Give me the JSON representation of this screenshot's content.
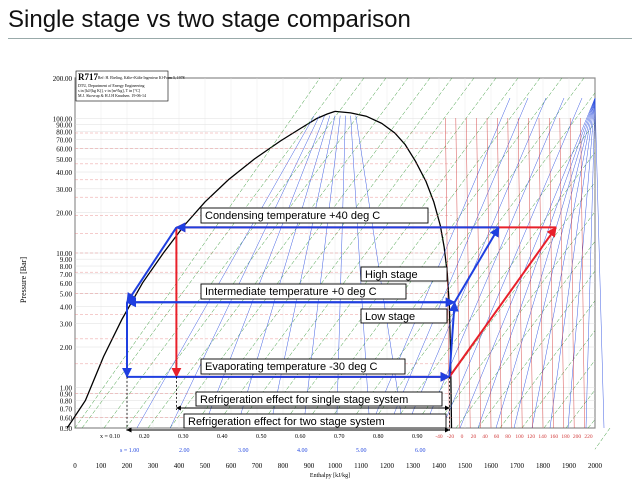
{
  "slide": {
    "title": "Single stage vs two stage comparison"
  },
  "chart_header": {
    "refrigerant": "R717",
    "ref_line": "Ref: H. Ebeling, Kälte+Kälte Ingenieur Kl-Form 5, 1978",
    "info_lines": [
      "DTU, Department of Energy Engineering",
      "s in [kJ/(kg K)], v in [m³/kg], T in [°C]",
      "M.J. Skovrup & H.J.H Knudsen. 19-06-14"
    ]
  },
  "chart_data": {
    "type": "diagram",
    "diagram_kind": "pressure-enthalpy (log p-h) diagram",
    "x_axis": {
      "label": "Enthalpy [kJ/kg]",
      "ticks": [
        "0",
        "100",
        "200",
        "300",
        "400",
        "500",
        "600",
        "700",
        "800",
        "900",
        "1000",
        "1100",
        "1200",
        "1300",
        "1400",
        "1500",
        "1600",
        "1700",
        "1800",
        "1900",
        "2000"
      ],
      "range": [
        0,
        2000
      ]
    },
    "y_axis": {
      "label": "Pressure [Bar]",
      "scale": "log",
      "ticks": [
        "200.00",
        "100.00",
        "90.00",
        "80.00",
        "70.00",
        "60.00",
        "50.00",
        "40.00",
        "30.00",
        "20.00",
        "10.00",
        "9.00",
        "8.00",
        "7.00",
        "6.00",
        "5.00",
        "4.00",
        "3.00",
        "2.00",
        "1.00",
        "0.90",
        "0.80",
        "0.70",
        "0.60",
        "0.50"
      ],
      "range": [
        0.5,
        200
      ]
    },
    "quality_labels": [
      "x = 0.10",
      "0.20",
      "0.30",
      "0.40",
      "0.50",
      "0.60",
      "0.70",
      "0.80",
      "0.90"
    ],
    "entropy_labels": [
      "s = 1.00",
      "2.00",
      "3.00",
      "4.00",
      "5.00",
      "6.00"
    ],
    "temperature_ticks": [
      "-40",
      "-20",
      "0",
      "20",
      "40",
      "60",
      "80",
      "100",
      "120",
      "140",
      "160",
      "180",
      "200",
      "220"
    ],
    "annotations": {
      "condensing": "Condensing temperature +40 deg C",
      "intermediate": "Intermediate temperature +0 deg C",
      "evaporating": "Evaporating temperature -30 deg C",
      "high_stage": "High stage",
      "low_stage": "Low stage",
      "effect_single": "Refrigeration effect for single stage system",
      "effect_two": "Refrigeration effect for two stage system"
    },
    "single_stage_cycle": {
      "color": "#e8202a",
      "points": [
        [
          390,
          15.5
        ],
        [
          390,
          1.2
        ],
        [
          1440,
          1.2
        ],
        [
          1850,
          15.5
        ]
      ]
    },
    "two_stage_cycle": {
      "color": "#1f3fe0",
      "high_stage": [
        [
          390,
          15.5
        ],
        [
          200,
          4.3
        ],
        [
          1460,
          4.3
        ],
        [
          1630,
          15.5
        ]
      ],
      "low_stage": [
        [
          200,
          4.3
        ],
        [
          200,
          1.2
        ],
        [
          1440,
          1.2
        ],
        [
          1460,
          4.3
        ]
      ]
    },
    "levels_bar": {
      "condensing": 15.5,
      "intermediate": 4.3,
      "evaporating": 1.2
    }
  }
}
